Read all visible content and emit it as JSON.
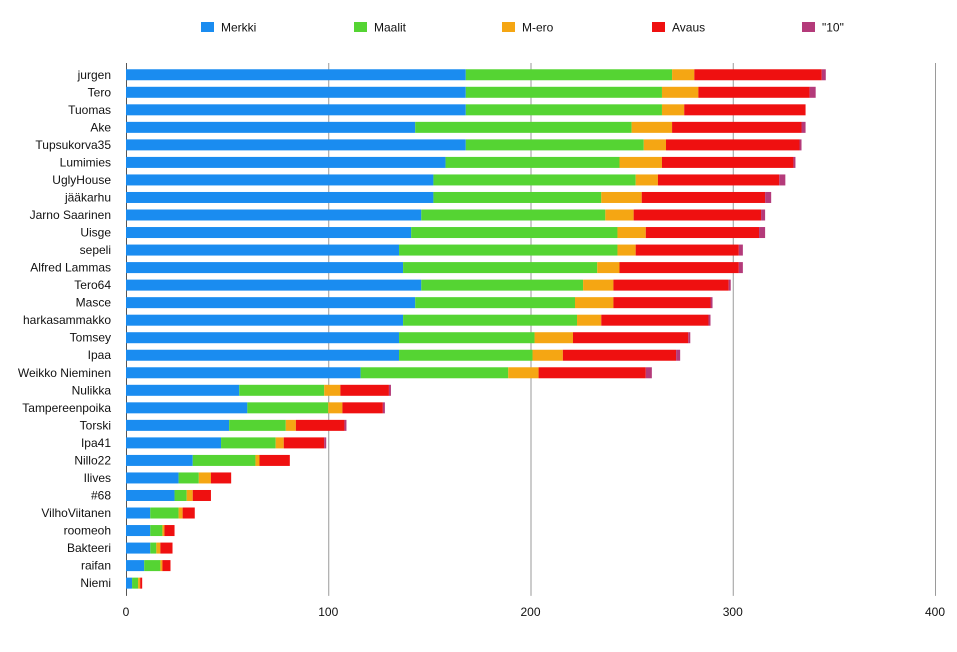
{
  "chart_data": {
    "type": "bar",
    "orientation": "horizontal",
    "stacked": true,
    "title": "",
    "xlabel": "",
    "ylabel": "",
    "xlim": [
      0,
      400
    ],
    "xticks": [
      0,
      100,
      200,
      300,
      400
    ],
    "grid": true,
    "legend_position": "top",
    "categories": [
      "jurgen",
      "Tero",
      "Tuomas",
      "Ake",
      "Tupsukorva35",
      "Lumimies",
      "UglyHouse",
      "jääkarhu",
      "Jarno Saarinen",
      "Uisge",
      "sepeli",
      "Alfred Lammas",
      "Tero64",
      "Masce",
      "harkasammakko",
      "Tomsey",
      "Ipaa",
      "Weikko Nieminen",
      "Nulikka",
      "Tampereenpoika",
      "Torski",
      "Ipa41",
      "Nillo22",
      "Ilives",
      "#68",
      "VilhoViitanen",
      "roomeoh",
      "Bakteeri",
      "raifan",
      "Niemi"
    ],
    "series": [
      {
        "name": "Merkki",
        "color": "#1a8cf0",
        "values": [
          168,
          168,
          168,
          143,
          168,
          158,
          152,
          152,
          146,
          141,
          135,
          137,
          146,
          143,
          137,
          135,
          135,
          116,
          56,
          60,
          51,
          47,
          33,
          26,
          24,
          12,
          12,
          12,
          9,
          3
        ]
      },
      {
        "name": "Maalit",
        "color": "#55d433",
        "values": [
          102,
          97,
          97,
          107,
          88,
          86,
          100,
          83,
          91,
          102,
          108,
          96,
          80,
          79,
          86,
          67,
          66,
          73,
          42,
          40,
          28,
          27,
          31,
          10,
          6,
          14,
          6,
          3,
          8,
          3
        ]
      },
      {
        "name": "M-ero",
        "color": "#f5a613",
        "values": [
          11,
          18,
          11,
          20,
          11,
          21,
          11,
          20,
          14,
          14,
          9,
          11,
          15,
          19,
          12,
          19,
          15,
          15,
          8,
          7,
          5,
          4,
          2,
          6,
          3,
          2,
          1,
          2,
          1,
          1
        ]
      },
      {
        "name": "Avaus",
        "color": "#ef1010",
        "values": [
          63,
          55,
          60,
          64,
          66,
          65,
          60,
          61,
          63,
          56,
          51,
          59,
          57,
          48,
          53,
          57,
          56,
          53,
          24,
          20,
          24,
          20,
          15,
          10,
          9,
          6,
          5,
          6,
          4,
          1
        ]
      },
      {
        "name": "\"10\"",
        "color": "#b43a7a",
        "values": [
          2,
          3,
          0,
          2,
          1,
          1,
          3,
          3,
          2,
          3,
          2,
          2,
          1,
          1,
          1,
          1,
          2,
          3,
          1,
          1,
          1,
          1,
          0,
          0,
          0,
          0,
          0,
          0,
          0,
          0
        ]
      }
    ]
  }
}
